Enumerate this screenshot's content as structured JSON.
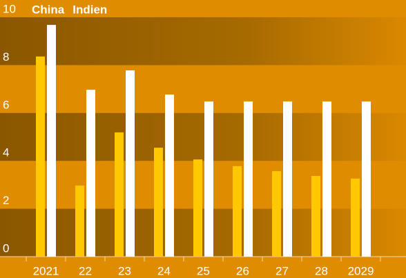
{
  "chart_data": {
    "type": "bar",
    "categories": [
      "2021",
      "22",
      "23",
      "24",
      "25",
      "26",
      "27",
      "28",
      "2029"
    ],
    "series": [
      {
        "name": "China",
        "color": "#ffc800",
        "values": [
          8.36,
          2.97,
          5.19,
          4.55,
          4.06,
          3.78,
          3.57,
          3.37,
          3.26
        ]
      },
      {
        "name": "Indien",
        "color": "#ffffff",
        "values": [
          9.68,
          6.97,
          7.78,
          6.77,
          6.48,
          6.48,
          6.48,
          6.48,
          6.48
        ]
      }
    ],
    "ylim": [
      0,
      10
    ],
    "yticks": [
      0,
      2,
      4,
      6,
      8,
      10
    ],
    "grid": true
  }
}
